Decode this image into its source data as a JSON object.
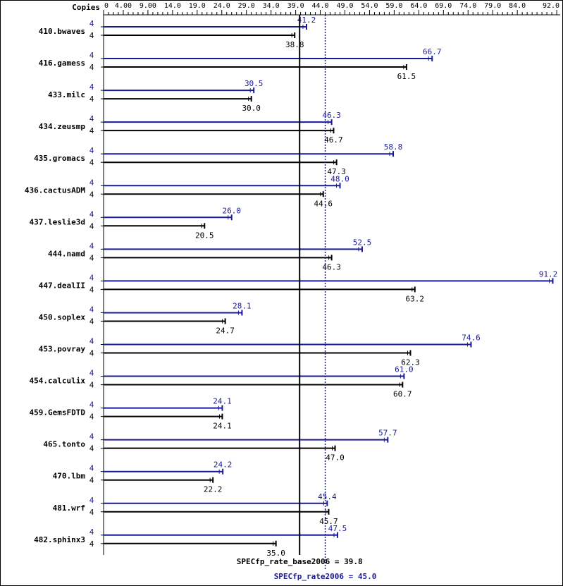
{
  "chart_data": {
    "type": "bar",
    "header_label": "Copies",
    "axis_ticks": [
      "0",
      "4.00",
      "9.00",
      "14.0",
      "19.0",
      "24.0",
      "29.0",
      "34.0",
      "39.0",
      "44.0",
      "49.0",
      "54.0",
      "59.0",
      "64.0",
      "69.0",
      "74.0",
      "79.0",
      "84.0",
      "92.0"
    ],
    "xlim": [
      0,
      92.0
    ],
    "colors": {
      "peak": "#1a1a99",
      "base": "#000000"
    },
    "benchmarks": [
      {
        "name": "410.bwaves",
        "copies_peak": "4",
        "copies_base": "4",
        "peak": 41.2,
        "base": 38.8
      },
      {
        "name": "416.gamess",
        "copies_peak": "4",
        "copies_base": "4",
        "peak": 66.7,
        "base": 61.5
      },
      {
        "name": "433.milc",
        "copies_peak": "4",
        "copies_base": "4",
        "peak": 30.5,
        "base": 30.0
      },
      {
        "name": "434.zeusmp",
        "copies_peak": "4",
        "copies_base": "4",
        "peak": 46.3,
        "base": 46.7
      },
      {
        "name": "435.gromacs",
        "copies_peak": "4",
        "copies_base": "4",
        "peak": 58.8,
        "base": 47.3
      },
      {
        "name": "436.cactusADM",
        "copies_peak": "4",
        "copies_base": "4",
        "peak": 48.0,
        "base": 44.6
      },
      {
        "name": "437.leslie3d",
        "copies_peak": "4",
        "copies_base": "4",
        "peak": 26.0,
        "base": 20.5
      },
      {
        "name": "444.namd",
        "copies_peak": "4",
        "copies_base": "4",
        "peak": 52.5,
        "base": 46.3
      },
      {
        "name": "447.dealII",
        "copies_peak": "4",
        "copies_base": "4",
        "peak": 91.2,
        "base": 63.2
      },
      {
        "name": "450.soplex",
        "copies_peak": "4",
        "copies_base": "4",
        "peak": 28.1,
        "base": 24.7
      },
      {
        "name": "453.povray",
        "copies_peak": "4",
        "copies_base": "4",
        "peak": 74.6,
        "base": 62.3
      },
      {
        "name": "454.calculix",
        "copies_peak": "4",
        "copies_base": "4",
        "peak": 61.0,
        "base": 60.7
      },
      {
        "name": "459.GemsFDTD",
        "copies_peak": "4",
        "copies_base": "4",
        "peak": 24.1,
        "base": 24.1
      },
      {
        "name": "465.tonto",
        "copies_peak": "4",
        "copies_base": "4",
        "peak": 57.7,
        "base": 47.0
      },
      {
        "name": "470.lbm",
        "copies_peak": "4",
        "copies_base": "4",
        "peak": 24.2,
        "base": 22.2
      },
      {
        "name": "481.wrf",
        "copies_peak": "4",
        "copies_base": "4",
        "peak": 45.4,
        "base": 45.7
      },
      {
        "name": "482.sphinx3",
        "copies_peak": "4",
        "copies_base": "4",
        "peak": 47.5,
        "base": 35.0
      }
    ],
    "base_reference": {
      "label": "SPECfp_rate_base2006 = 39.8",
      "value": 39.8
    },
    "peak_reference": {
      "label": "SPECfp_rate2006 = 45.0",
      "value": 45.0
    }
  }
}
